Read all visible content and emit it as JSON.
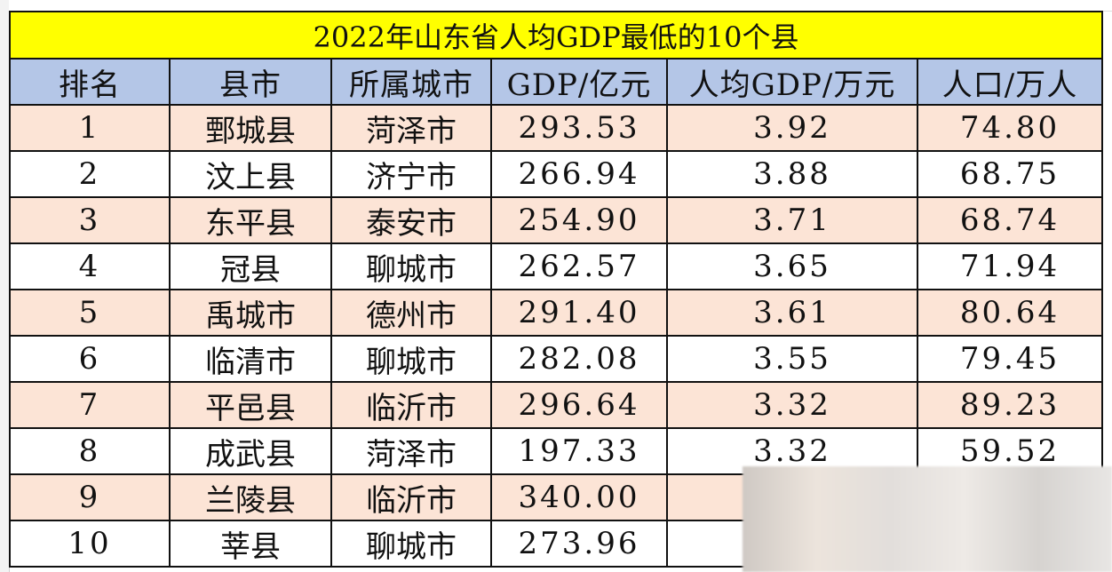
{
  "title": "2022年山东省人均GDP最低的10个县",
  "headers": [
    "排名",
    "县市",
    "所属城市",
    "GDP/亿元",
    "人均GDP/万元",
    "人口/万人"
  ],
  "rows": [
    [
      "1",
      "鄄城县",
      "菏泽市",
      "293.53",
      "3.92",
      "74.80"
    ],
    [
      "2",
      "汶上县",
      "济宁市",
      "266.94",
      "3.88",
      "68.75"
    ],
    [
      "3",
      "东平县",
      "泰安市",
      "254.90",
      "3.71",
      "68.74"
    ],
    [
      "4",
      "冠县",
      "聊城市",
      "262.57",
      "3.65",
      "71.94"
    ],
    [
      "5",
      "禹城市",
      "德州市",
      "291.40",
      "3.61",
      "80.64"
    ],
    [
      "6",
      "临清市",
      "聊城市",
      "282.08",
      "3.55",
      "79.45"
    ],
    [
      "7",
      "平邑县",
      "临沂市",
      "296.64",
      "3.32",
      "89.23"
    ],
    [
      "8",
      "成武县",
      "菏泽市",
      "197.33",
      "3.32",
      "59.52"
    ],
    [
      "9",
      "兰陵县",
      "临沂市",
      "340.00",
      "",
      ""
    ],
    [
      "10",
      "莘县",
      "聊城市",
      "273.96",
      "",
      ""
    ]
  ],
  "colors": {
    "title_bg": "#ffff00",
    "header_bg": "#b4c6e7",
    "odd_row_bg": "#fce4d6",
    "even_row_bg": "#ffffff"
  }
}
